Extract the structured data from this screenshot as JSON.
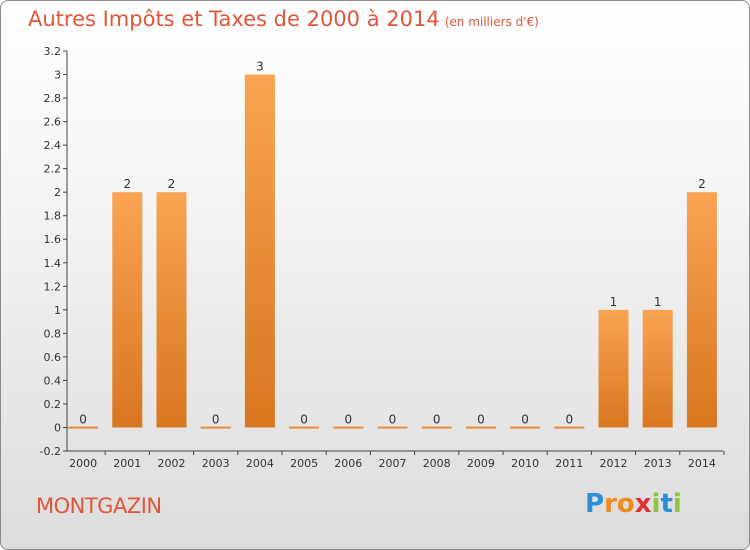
{
  "header": {
    "title": "Autres Impôts et Taxes de 2000 à 2014",
    "unit": "(en milliers d'€)"
  },
  "commune": "MONTGAZIN",
  "logo": {
    "letters": [
      {
        "char": "P",
        "color": "#2d8fd8"
      },
      {
        "char": "r",
        "color": "#f08a1c"
      },
      {
        "char": "o",
        "color": "#f08a1c"
      },
      {
        "char": "x",
        "color": "#e03131"
      },
      {
        "char": "i",
        "color": "#8dc63f"
      },
      {
        "char": "t",
        "color": "#2d8fd8"
      },
      {
        "char": "i",
        "color": "#8dc63f"
      }
    ]
  },
  "chart_data": {
    "type": "bar",
    "categories": [
      "2000",
      "2001",
      "2002",
      "2003",
      "2004",
      "2005",
      "2006",
      "2007",
      "2008",
      "2009",
      "2010",
      "2011",
      "2012",
      "2013",
      "2014"
    ],
    "values": [
      0,
      2,
      2,
      0,
      3,
      0,
      0,
      0,
      0,
      0,
      0,
      0,
      1,
      1,
      2
    ],
    "data_labels": [
      "0",
      "2",
      "2",
      "0",
      "3",
      "0",
      "0",
      "0",
      "0",
      "0",
      "0",
      "0",
      "1",
      "1",
      "2"
    ],
    "ylim": [
      -0.2,
      3.2
    ],
    "yticks": [
      "-0.2",
      "0",
      "0.2",
      "0.4",
      "0.6",
      "0.8",
      "1",
      "1.2",
      "1.4",
      "1.6",
      "1.8",
      "2",
      "2.2",
      "2.4",
      "2.6",
      "2.8",
      "3",
      "3.2"
    ],
    "ytick_values": [
      -0.2,
      0,
      0.2,
      0.4,
      0.6,
      0.8,
      1,
      1.2,
      1.4,
      1.6,
      1.8,
      2,
      2.2,
      2.4,
      2.6,
      2.8,
      3,
      3.2
    ],
    "grid": false,
    "bar_color_top": "#f9a453",
    "bar_color_bottom": "#d8761f"
  }
}
